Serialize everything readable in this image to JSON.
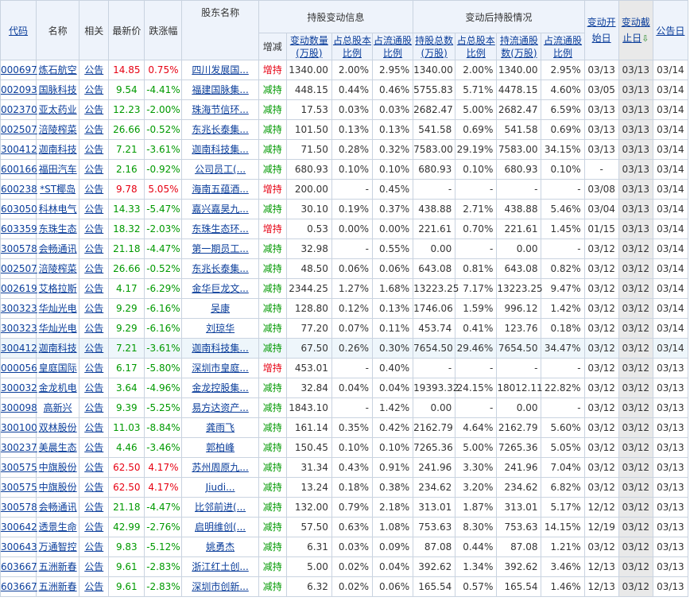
{
  "headers": {
    "code": "代码",
    "name": "名称",
    "related": "相关",
    "price": "最新价",
    "change": "跌涨幅",
    "holder": "股东名称",
    "group_change_info": "持股变动信息",
    "group_after": "变动后持股情况",
    "direction": "增减",
    "change_qty": "变动数量(万股)",
    "change_pct_total": "占总股本比例",
    "change_pct_float": "占流通股比例",
    "after_total": "持股总数(万股)",
    "after_pct_total": "占总股本比例",
    "after_float": "持流通股数(万股)",
    "after_pct_float": "占流通股比例",
    "start_date": "变动开始日",
    "end_date": "变动截止日",
    "sort_arrow": "⇩",
    "announce_date": "公告日"
  },
  "colors": {
    "up": "#e60012",
    "down": "#009900",
    "link": "#0b3e9b",
    "header_bg": "#eef3fb",
    "sorted_col_bg": "#e9e9e9"
  },
  "rows": [
    {
      "code": "000697",
      "name": "炼石航空",
      "related": "公告",
      "price": "14.85",
      "change": "0.75%",
      "trend": "up",
      "holder": "四川发展国...",
      "dir": "增持",
      "qty": "1340.00",
      "pt": "2.00%",
      "pf": "2.95%",
      "at": "1340.00",
      "apt": "2.00%",
      "af": "1340.00",
      "apf": "2.95%",
      "start": "03/13",
      "end": "03/13",
      "ann": "03/14"
    },
    {
      "code": "002093",
      "name": "国脉科技",
      "related": "公告",
      "price": "9.54",
      "change": "-4.41%",
      "trend": "down",
      "holder": "福建国脉集...",
      "dir": "减持",
      "qty": "448.15",
      "pt": "0.44%",
      "pf": "0.46%",
      "at": "5755.83",
      "apt": "5.71%",
      "af": "4478.15",
      "apf": "4.60%",
      "start": "03/05",
      "end": "03/13",
      "ann": "03/14"
    },
    {
      "code": "002370",
      "name": "亚太药业",
      "related": "公告",
      "price": "12.23",
      "change": "-2.00%",
      "trend": "down",
      "holder": "珠海节信环...",
      "dir": "减持",
      "qty": "17.53",
      "pt": "0.03%",
      "pf": "0.03%",
      "at": "2682.47",
      "apt": "5.00%",
      "af": "2682.47",
      "apf": "6.59%",
      "start": "03/13",
      "end": "03/13",
      "ann": "03/14"
    },
    {
      "code": "002507",
      "name": "涪陵榨菜",
      "related": "公告",
      "price": "26.66",
      "change": "-0.52%",
      "trend": "down",
      "holder": "东兆长泰集...",
      "dir": "减持",
      "qty": "101.50",
      "pt": "0.13%",
      "pf": "0.13%",
      "at": "541.58",
      "apt": "0.69%",
      "af": "541.58",
      "apf": "0.69%",
      "start": "03/13",
      "end": "03/13",
      "ann": "03/14"
    },
    {
      "code": "300412",
      "name": "迦南科技",
      "related": "公告",
      "price": "7.21",
      "change": "-3.61%",
      "trend": "down",
      "holder": "迦南科技集...",
      "dir": "减持",
      "qty": "71.50",
      "pt": "0.28%",
      "pf": "0.32%",
      "at": "7583.00",
      "apt": "29.19%",
      "af": "7583.00",
      "apf": "34.15%",
      "start": "03/13",
      "end": "03/13",
      "ann": "03/14"
    },
    {
      "code": "600166",
      "name": "福田汽车",
      "related": "公告",
      "price": "2.16",
      "change": "-0.92%",
      "trend": "down",
      "holder": "公司员工(...",
      "dir": "减持",
      "qty": "680.93",
      "pt": "0.10%",
      "pf": "0.10%",
      "at": "680.93",
      "apt": "0.10%",
      "af": "680.93",
      "apf": "0.10%",
      "start": "-",
      "end": "03/13",
      "ann": "03/14"
    },
    {
      "code": "600238",
      "name": "*ST椰岛",
      "related": "公告",
      "price": "9.78",
      "change": "5.05%",
      "trend": "up",
      "holder": "海南五蕴酒...",
      "dir": "增持",
      "qty": "200.00",
      "pt": "-",
      "pf": "0.45%",
      "at": "-",
      "apt": "-",
      "af": "-",
      "apf": "-",
      "start": "03/08",
      "end": "03/13",
      "ann": "03/14"
    },
    {
      "code": "603050",
      "name": "科林电气",
      "related": "公告",
      "price": "14.33",
      "change": "-5.47%",
      "trend": "down",
      "holder": "嘉兴嘉昊九...",
      "dir": "减持",
      "qty": "30.10",
      "pt": "0.19%",
      "pf": "0.37%",
      "at": "438.88",
      "apt": "2.71%",
      "af": "438.88",
      "apf": "5.46%",
      "start": "03/04",
      "end": "03/13",
      "ann": "03/14"
    },
    {
      "code": "603359",
      "name": "东珠生态",
      "related": "公告",
      "price": "18.32",
      "change": "-2.03%",
      "trend": "down",
      "holder": "东珠生态环...",
      "dir": "增持",
      "qty": "0.53",
      "pt": "0.00%",
      "pf": "0.00%",
      "at": "221.61",
      "apt": "0.70%",
      "af": "221.61",
      "apf": "1.45%",
      "start": "01/15",
      "end": "03/13",
      "ann": "03/14"
    },
    {
      "code": "300578",
      "name": "会畅通讯",
      "related": "公告",
      "price": "21.18",
      "change": "-4.47%",
      "trend": "down",
      "holder": "第一期员工...",
      "dir": "减持",
      "qty": "32.98",
      "pt": "-",
      "pf": "0.55%",
      "at": "0.00",
      "apt": "-",
      "af": "0.00",
      "apf": "-",
      "start": "03/12",
      "end": "03/12",
      "ann": "03/14"
    },
    {
      "code": "002507",
      "name": "涪陵榨菜",
      "related": "公告",
      "price": "26.66",
      "change": "-0.52%",
      "trend": "down",
      "holder": "东兆长泰集...",
      "dir": "减持",
      "qty": "48.50",
      "pt": "0.06%",
      "pf": "0.06%",
      "at": "643.08",
      "apt": "0.81%",
      "af": "643.08",
      "apf": "0.82%",
      "start": "03/12",
      "end": "03/12",
      "ann": "03/14"
    },
    {
      "code": "002619",
      "name": "艾格拉斯",
      "related": "公告",
      "price": "4.17",
      "change": "-6.29%",
      "trend": "down",
      "holder": "金华巨龙文...",
      "dir": "减持",
      "qty": "2344.25",
      "pt": "1.27%",
      "pf": "1.68%",
      "at": "13223.25",
      "apt": "7.17%",
      "af": "13223.25",
      "apf": "9.47%",
      "start": "03/12",
      "end": "03/12",
      "ann": "03/14"
    },
    {
      "code": "300323",
      "name": "华灿光电",
      "related": "公告",
      "price": "9.29",
      "change": "-6.16%",
      "trend": "down",
      "holder": "吴康",
      "dir": "减持",
      "qty": "128.80",
      "pt": "0.12%",
      "pf": "0.13%",
      "at": "1746.06",
      "apt": "1.59%",
      "af": "996.12",
      "apf": "1.42%",
      "start": "03/12",
      "end": "03/12",
      "ann": "03/14"
    },
    {
      "code": "300323",
      "name": "华灿光电",
      "related": "公告",
      "price": "9.29",
      "change": "-6.16%",
      "trend": "down",
      "holder": "刘琼华",
      "dir": "减持",
      "qty": "77.20",
      "pt": "0.07%",
      "pf": "0.11%",
      "at": "453.74",
      "apt": "0.41%",
      "af": "123.76",
      "apf": "0.18%",
      "start": "03/12",
      "end": "03/12",
      "ann": "03/14"
    },
    {
      "code": "300412",
      "name": "迦南科技",
      "related": "公告",
      "price": "7.21",
      "change": "-3.61%",
      "trend": "down",
      "holder": "迦南科技集...",
      "dir": "减持",
      "qty": "67.50",
      "pt": "0.26%",
      "pf": "0.30%",
      "at": "7654.50",
      "apt": "29.46%",
      "af": "7654.50",
      "apf": "34.47%",
      "start": "03/12",
      "end": "03/12",
      "ann": "03/14",
      "highlight": true
    },
    {
      "code": "000056",
      "name": "皇庭国际",
      "related": "公告",
      "price": "6.17",
      "change": "-5.80%",
      "trend": "down",
      "holder": "深圳市皇庭...",
      "dir": "增持",
      "qty": "453.01",
      "pt": "-",
      "pf": "0.40%",
      "at": "-",
      "apt": "-",
      "af": "-",
      "apf": "-",
      "start": "03/12",
      "end": "03/12",
      "ann": "03/13"
    },
    {
      "code": "300032",
      "name": "金龙机电",
      "related": "公告",
      "price": "3.64",
      "change": "-4.96%",
      "trend": "down",
      "holder": "金龙控股集...",
      "dir": "减持",
      "qty": "32.84",
      "pt": "0.04%",
      "pf": "0.04%",
      "at": "19393.32",
      "apt": "24.15%",
      "af": "18012.11",
      "apf": "22.82%",
      "start": "03/12",
      "end": "03/12",
      "ann": "03/13"
    },
    {
      "code": "300098",
      "name": "高新兴",
      "related": "公告",
      "price": "9.39",
      "change": "-5.25%",
      "trend": "down",
      "holder": "易方达资产...",
      "dir": "减持",
      "qty": "1843.10",
      "pt": "-",
      "pf": "1.42%",
      "at": "0.00",
      "apt": "-",
      "af": "0.00",
      "apf": "-",
      "start": "03/12",
      "end": "03/12",
      "ann": "03/13"
    },
    {
      "code": "300100",
      "name": "双林股份",
      "related": "公告",
      "price": "11.03",
      "change": "-8.84%",
      "trend": "down",
      "holder": "龚雨飞",
      "dir": "减持",
      "qty": "161.14",
      "pt": "0.35%",
      "pf": "0.42%",
      "at": "2162.79",
      "apt": "4.64%",
      "af": "2162.79",
      "apf": "5.60%",
      "start": "03/12",
      "end": "03/12",
      "ann": "03/13"
    },
    {
      "code": "300237",
      "name": "美晨生态",
      "related": "公告",
      "price": "4.46",
      "change": "-3.46%",
      "trend": "down",
      "holder": "郭柏峰",
      "dir": "减持",
      "qty": "150.45",
      "pt": "0.10%",
      "pf": "0.10%",
      "at": "7265.36",
      "apt": "5.00%",
      "af": "7265.36",
      "apf": "5.05%",
      "start": "03/12",
      "end": "03/12",
      "ann": "03/13"
    },
    {
      "code": "300575",
      "name": "中旗股份",
      "related": "公告",
      "price": "62.50",
      "change": "4.17%",
      "trend": "up",
      "holder": "苏州周原九...",
      "dir": "减持",
      "qty": "31.34",
      "pt": "0.43%",
      "pf": "0.91%",
      "at": "241.96",
      "apt": "3.30%",
      "af": "241.96",
      "apf": "7.04%",
      "start": "03/12",
      "end": "03/12",
      "ann": "03/13"
    },
    {
      "code": "300575",
      "name": "中旗股份",
      "related": "公告",
      "price": "62.50",
      "change": "4.17%",
      "trend": "up",
      "holder": "Jiudi...",
      "dir": "减持",
      "qty": "13.24",
      "pt": "0.18%",
      "pf": "0.38%",
      "at": "234.62",
      "apt": "3.20%",
      "af": "234.62",
      "apf": "6.82%",
      "start": "03/12",
      "end": "03/12",
      "ann": "03/13"
    },
    {
      "code": "300578",
      "name": "会畅通讯",
      "related": "公告",
      "price": "21.18",
      "change": "-4.47%",
      "trend": "down",
      "holder": "比邻前进(...",
      "dir": "减持",
      "qty": "132.00",
      "pt": "0.79%",
      "pf": "2.18%",
      "at": "313.01",
      "apt": "1.87%",
      "af": "313.01",
      "apf": "5.17%",
      "start": "12/12",
      "end": "03/12",
      "ann": "03/13"
    },
    {
      "code": "300642",
      "name": "透景生命",
      "related": "公告",
      "price": "42.99",
      "change": "-2.76%",
      "trend": "down",
      "holder": "启明维创(...",
      "dir": "减持",
      "qty": "57.50",
      "pt": "0.63%",
      "pf": "1.08%",
      "at": "753.63",
      "apt": "8.30%",
      "af": "753.63",
      "apf": "14.15%",
      "start": "12/19",
      "end": "03/12",
      "ann": "03/13"
    },
    {
      "code": "300643",
      "name": "万通智控",
      "related": "公告",
      "price": "9.83",
      "change": "-5.12%",
      "trend": "down",
      "holder": "姚勇杰",
      "dir": "减持",
      "qty": "6.31",
      "pt": "0.03%",
      "pf": "0.09%",
      "at": "87.08",
      "apt": "0.44%",
      "af": "87.08",
      "apf": "1.21%",
      "start": "03/12",
      "end": "03/12",
      "ann": "03/13"
    },
    {
      "code": "603667",
      "name": "五洲新春",
      "related": "公告",
      "price": "9.61",
      "change": "-2.83%",
      "trend": "down",
      "holder": "浙江红土创...",
      "dir": "减持",
      "qty": "5.00",
      "pt": "0.02%",
      "pf": "0.04%",
      "at": "392.62",
      "apt": "1.34%",
      "af": "392.62",
      "apf": "3.46%",
      "start": "12/13",
      "end": "03/12",
      "ann": "03/13"
    },
    {
      "code": "603667",
      "name": "五洲新春",
      "related": "公告",
      "price": "9.61",
      "change": "-2.83%",
      "trend": "down",
      "holder": "深圳市创新...",
      "dir": "减持",
      "qty": "6.32",
      "pt": "0.02%",
      "pf": "0.06%",
      "at": "165.54",
      "apt": "0.57%",
      "af": "165.54",
      "apf": "1.46%",
      "start": "12/13",
      "end": "03/12",
      "ann": "03/13"
    }
  ]
}
